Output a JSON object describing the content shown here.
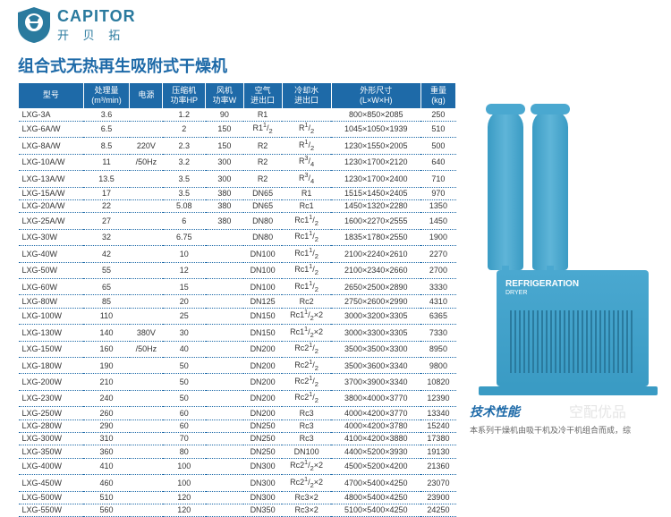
{
  "brand": {
    "en": "CAPITOR",
    "cn": "开 贝 拓"
  },
  "title": "组合式无热再生吸附式干燥机",
  "unit": {
    "label1": "REFRIGERATION",
    "label2": "DRYER"
  },
  "tech_title": "技术性能",
  "tech_desc": "本系列干燥机由吸干机及冷干机组合而成，综",
  "watermark": "空配优品",
  "headers": [
    "型号",
    "处理量\n(m³/min)",
    "电源",
    "压缩机\n功率HP",
    "风机\n功率W",
    "空气\n进出口",
    "冷却水\n进出口",
    "外形尺寸\n(L×W×H)",
    "重量\n(kg)"
  ],
  "rows": [
    [
      "LXG-3A",
      "3.6",
      "",
      "1.2",
      "90",
      "R1",
      "",
      "800×850×2085",
      "250"
    ],
    [
      "LXG-6A/W",
      "6.5",
      "",
      "2",
      "150",
      "R1¹/₂",
      "R¹/₂",
      "1045×1050×1939",
      "510"
    ],
    [
      "LXG-8A/W",
      "8.5",
      "220V",
      "2.3",
      "150",
      "R2",
      "R¹/₂",
      "1230×1550×2005",
      "500"
    ],
    [
      "LXG-10A/W",
      "11",
      "/50Hz",
      "3.2",
      "300",
      "R2",
      "R³/₄",
      "1230×1700×2120",
      "640"
    ],
    [
      "LXG-13A/W",
      "13.5",
      "",
      "3.5",
      "300",
      "R2",
      "R³/₄",
      "1230×1700×2400",
      "710"
    ],
    [
      "LXG-15A/W",
      "17",
      "",
      "3.5",
      "380",
      "DN65",
      "R1",
      "1515×1450×2405",
      "970"
    ],
    [
      "LXG-20A/W",
      "22",
      "",
      "5.08",
      "380",
      "DN65",
      "Rc1",
      "1450×1320×2280",
      "1350"
    ],
    [
      "LXG-25A/W",
      "27",
      "",
      "6",
      "380",
      "DN80",
      "Rc1¹/₂",
      "1600×2270×2555",
      "1450"
    ],
    [
      "LXG-30W",
      "32",
      "",
      "6.75",
      "",
      "DN80",
      "Rc1¹/₂",
      "1835×1780×2550",
      "1900"
    ],
    [
      "LXG-40W",
      "42",
      "",
      "10",
      "",
      "DN100",
      "Rc1¹/₂",
      "2100×2240×2610",
      "2270"
    ],
    [
      "LXG-50W",
      "55",
      "",
      "12",
      "",
      "DN100",
      "Rc1¹/₂",
      "2100×2340×2660",
      "2700"
    ],
    [
      "LXG-60W",
      "65",
      "",
      "15",
      "",
      "DN100",
      "Rc1¹/₂",
      "2650×2500×2890",
      "3330"
    ],
    [
      "LXG-80W",
      "85",
      "",
      "20",
      "",
      "DN125",
      "Rc2",
      "2750×2600×2990",
      "4310"
    ],
    [
      "LXG-100W",
      "110",
      "",
      "25",
      "",
      "DN150",
      "Rc1¹/₂×2",
      "3000×3200×3305",
      "6365"
    ],
    [
      "LXG-130W",
      "140",
      "380V",
      "30",
      "",
      "DN150",
      "Rc1¹/₂×2",
      "3000×3300×3305",
      "7330"
    ],
    [
      "LXG-150W",
      "160",
      "/50Hz",
      "40",
      "",
      "DN200",
      "Rc2¹/₂",
      "3500×3500×3300",
      "8950"
    ],
    [
      "LXG-180W",
      "190",
      "",
      "50",
      "",
      "DN200",
      "Rc2¹/₂",
      "3500×3600×3340",
      "9800"
    ],
    [
      "LXG-200W",
      "210",
      "",
      "50",
      "",
      "DN200",
      "Rc2¹/₂",
      "3700×3900×3340",
      "10820"
    ],
    [
      "LXG-230W",
      "240",
      "",
      "50",
      "",
      "DN200",
      "Rc2¹/₂",
      "3800×4000×3770",
      "12390"
    ],
    [
      "LXG-250W",
      "260",
      "",
      "60",
      "",
      "DN200",
      "Rc3",
      "4000×4200×3770",
      "13340"
    ],
    [
      "LXG-280W",
      "290",
      "",
      "60",
      "",
      "DN250",
      "Rc3",
      "4000×4200×3780",
      "15240"
    ],
    [
      "LXG-300W",
      "310",
      "",
      "70",
      "",
      "DN250",
      "Rc3",
      "4100×4200×3880",
      "17380"
    ],
    [
      "LXG-350W",
      "360",
      "",
      "80",
      "",
      "DN250",
      "DN100",
      "4400×5200×3930",
      "19130"
    ],
    [
      "LXG-400W",
      "410",
      "",
      "100",
      "",
      "DN300",
      "Rc2¹/₂×2",
      "4500×5200×4200",
      "21360"
    ],
    [
      "LXG-450W",
      "460",
      "",
      "100",
      "",
      "DN300",
      "Rc2¹/₂×2",
      "4700×5400×4250",
      "23070"
    ],
    [
      "LXG-500W",
      "510",
      "",
      "120",
      "",
      "DN300",
      "Rc3×2",
      "4800×5400×4250",
      "23900"
    ],
    [
      "LXG-550W",
      "560",
      "",
      "120",
      "",
      "DN350",
      "Rc3×2",
      "5100×5400×4250",
      "24250"
    ]
  ]
}
